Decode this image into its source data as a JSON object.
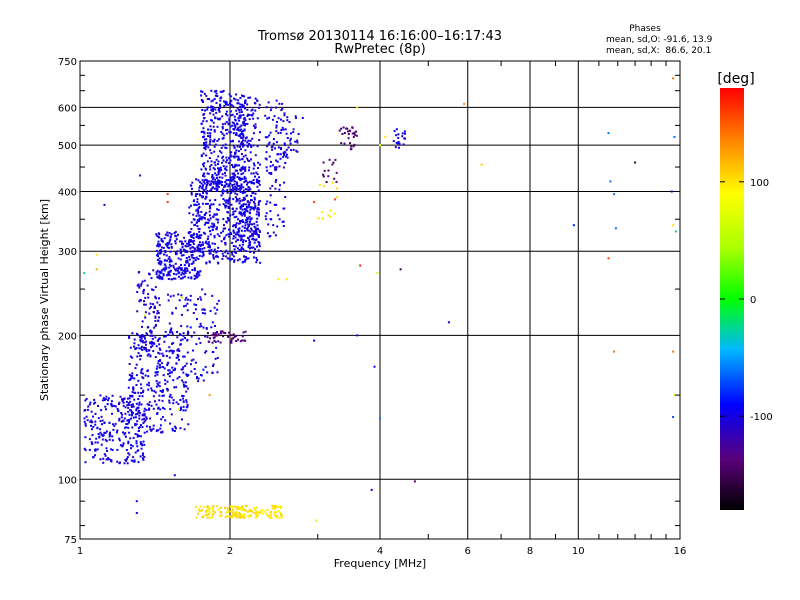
{
  "chart_data": {
    "type": "scatter",
    "title": "Tromsø 20130114 16:16:00–16:17:43",
    "subtitle": "RwPretec (8p)",
    "xlabel": "Frequency [MHz]",
    "ylabel": "Stationary phase Virtual Height [km]",
    "x_scale": "log",
    "y_scale": "log",
    "xlim": [
      1,
      16
    ],
    "ylim": [
      75,
      750
    ],
    "x_ticks": [
      1,
      2,
      4,
      6,
      8,
      10,
      16
    ],
    "y_ticks": [
      75,
      100,
      200,
      300,
      400,
      500,
      600,
      750
    ],
    "grid": true,
    "stats": {
      "title": "Phases",
      "line_o": "mean, sd,O: -91.6, 13.9",
      "line_x": "mean, sd,X:  86.6, 20.1"
    },
    "colorbar": {
      "label": "[deg]",
      "range": [
        -180,
        180
      ],
      "ticks": [
        "100",
        "0",
        "-100"
      ],
      "tick_values": [
        100,
        0,
        -100
      ]
    },
    "series": [
      {
        "regions": [
          {
            "x": [
              1.02,
              1.35
            ],
            "y": [
              108,
              150
            ],
            "phase": -100,
            "n": 260
          },
          {
            "x": [
              1.25,
              1.65
            ],
            "y": [
              125,
              205
            ],
            "phase": -100,
            "n": 320
          },
          {
            "x": [
              1.3,
              1.45
            ],
            "y": [
              180,
              275
            ],
            "phase": -105,
            "n": 110
          },
          {
            "x": [
              1.5,
              1.9
            ],
            "y": [
              160,
              250
            ],
            "phase": -100,
            "n": 120
          },
          {
            "x": [
              1.42,
              1.75
            ],
            "y": [
              262,
              330
            ],
            "phase": -100,
            "n": 260
          },
          {
            "x": [
              1.65,
              2.3
            ],
            "y": [
              282,
              430
            ],
            "phase": -100,
            "n": 520
          },
          {
            "x": [
              1.75,
              2.15
            ],
            "y": [
              400,
              650
            ],
            "phase": -100,
            "n": 420
          },
          {
            "x": [
              2.05,
              2.3
            ],
            "y": [
              300,
              630
            ],
            "phase": -100,
            "n": 220
          },
          {
            "x": [
              2.35,
              2.6
            ],
            "y": [
              320,
              620
            ],
            "phase": -100,
            "n": 110
          },
          {
            "x": [
              2.55,
              2.75
            ],
            "y": [
              470,
              580
            ],
            "phase": -100,
            "n": 35
          },
          {
            "x": [
              1.8,
              2.15
            ],
            "y": [
              193,
              205
            ],
            "phase": -135,
            "n": 45
          },
          {
            "x": [
              3.3,
              3.6
            ],
            "y": [
              490,
              545
            ],
            "phase": -140,
            "n": 30
          },
          {
            "x": [
              4.25,
              4.5
            ],
            "y": [
              490,
              540
            ],
            "phase": -100,
            "n": 20
          },
          {
            "x": [
              3.05,
              3.3
            ],
            "y": [
              410,
              470
            ],
            "phase": -140,
            "n": 14
          },
          {
            "x": [
              3.0,
              3.3
            ],
            "y": [
              350,
              420
            ],
            "phase": 100,
            "n": 12
          },
          {
            "x": [
              1.7,
              2.55
            ],
            "y": [
              83,
              88
            ],
            "phase": 100,
            "n": 170
          }
        ],
        "points": [
          {
            "x": 1.78,
            "y": 640,
            "phase": -100
          },
          {
            "x": 2.8,
            "y": 570,
            "phase": -100
          },
          {
            "x": 3.6,
            "y": 600,
            "phase": 100
          },
          {
            "x": 4.1,
            "y": 520,
            "phase": 100
          },
          {
            "x": 4.0,
            "y": 500,
            "phase": 90
          },
          {
            "x": 5.9,
            "y": 610,
            "phase": 130
          },
          {
            "x": 6.4,
            "y": 455,
            "phase": 110
          },
          {
            "x": 2.95,
            "y": 380,
            "phase": 160
          },
          {
            "x": 3.25,
            "y": 385,
            "phase": 160
          },
          {
            "x": 3.65,
            "y": 280,
            "phase": 170
          },
          {
            "x": 3.95,
            "y": 270,
            "phase": 60
          },
          {
            "x": 4.4,
            "y": 275,
            "phase": -150
          },
          {
            "x": 1.12,
            "y": 375,
            "phase": -110
          },
          {
            "x": 1.5,
            "y": 380,
            "phase": 160
          },
          {
            "x": 1.08,
            "y": 295,
            "phase": 100
          },
          {
            "x": 1.02,
            "y": 270,
            "phase": -30
          },
          {
            "x": 1.08,
            "y": 275,
            "phase": 120
          },
          {
            "x": 1.32,
            "y": 432,
            "phase": -110
          },
          {
            "x": 1.5,
            "y": 395,
            "phase": 160
          },
          {
            "x": 1.6,
            "y": 240,
            "phase": 60
          },
          {
            "x": 2.6,
            "y": 262,
            "phase": 100
          },
          {
            "x": 2.5,
            "y": 262,
            "phase": 80
          },
          {
            "x": 1.35,
            "y": 220,
            "phase": 60
          },
          {
            "x": 3.6,
            "y": 200,
            "phase": -100
          },
          {
            "x": 2.95,
            "y": 195,
            "phase": -100
          },
          {
            "x": 5.5,
            "y": 213,
            "phase": -100
          },
          {
            "x": 3.9,
            "y": 172,
            "phase": -100
          },
          {
            "x": 4.0,
            "y": 134,
            "phase": -60
          },
          {
            "x": 1.82,
            "y": 150,
            "phase": 130
          },
          {
            "x": 1.58,
            "y": 140,
            "phase": 90
          },
          {
            "x": 1.55,
            "y": 102,
            "phase": -100
          },
          {
            "x": 1.3,
            "y": 90,
            "phase": -100
          },
          {
            "x": 1.3,
            "y": 85,
            "phase": -100
          },
          {
            "x": 3.85,
            "y": 95,
            "phase": -100
          },
          {
            "x": 4.7,
            "y": 99,
            "phase": -140
          },
          {
            "x": 2.98,
            "y": 82,
            "phase": 60
          },
          {
            "x": 9.8,
            "y": 340,
            "phase": -80
          },
          {
            "x": 11.5,
            "y": 530,
            "phase": -60
          },
          {
            "x": 11.6,
            "y": 420,
            "phase": -60
          },
          {
            "x": 11.8,
            "y": 395,
            "phase": -60
          },
          {
            "x": 11.9,
            "y": 335,
            "phase": -60
          },
          {
            "x": 11.5,
            "y": 290,
            "phase": 160
          },
          {
            "x": 13.0,
            "y": 460,
            "phase": -160
          },
          {
            "x": 15.5,
            "y": 690,
            "phase": 140
          },
          {
            "x": 15.6,
            "y": 520,
            "phase": -60
          },
          {
            "x": 15.4,
            "y": 400,
            "phase": -100
          },
          {
            "x": 15.5,
            "y": 340,
            "phase": 100
          },
          {
            "x": 15.7,
            "y": 330,
            "phase": -30
          },
          {
            "x": 11.8,
            "y": 185,
            "phase": 140
          },
          {
            "x": 15.5,
            "y": 185,
            "phase": 140
          },
          {
            "x": 15.6,
            "y": 150,
            "phase": 90
          },
          {
            "x": 15.5,
            "y": 135,
            "phase": -70
          }
        ]
      }
    ]
  }
}
